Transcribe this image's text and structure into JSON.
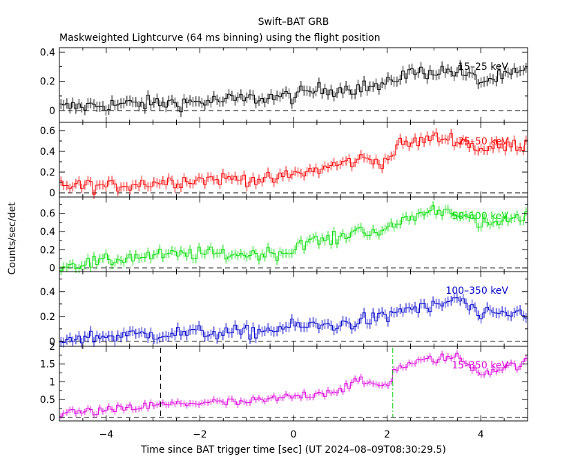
{
  "title": "Swift–BAT GRB",
  "subtitle": "Maskweighted Lightcurve (64 ms binning) using the flight position",
  "ylabel": "Counts/sec/det",
  "xlabel": "Time since BAT trigger time [sec] (UT 2024–08–09T08:30:29.5)",
  "colors": {
    "axis": "#000000",
    "baseline": "#000000",
    "t_start_marker": "#000000",
    "t_end_marker": "#00cc00"
  },
  "chart_data": {
    "type": "line",
    "xlim": [
      -5,
      5
    ],
    "x_ticks": [
      -4,
      -2,
      0,
      2,
      4
    ],
    "x_tick_labels": [
      "−4",
      "−2",
      "0",
      "2",
      "4"
    ],
    "grid": false,
    "markers": [
      {
        "name": "t_start",
        "x": -2.84,
        "panel": 4,
        "style": "dashed",
        "color": "#000000"
      },
      {
        "name": "t_end",
        "x": 2.12,
        "panel": 4,
        "style": "dashdot",
        "color": "#00cc00"
      }
    ],
    "panels": [
      {
        "label": "15–25 keV",
        "color": "#000000",
        "ylim": [
          -0.08,
          0.43
        ],
        "y_ticks": [
          0,
          0.2,
          0.4
        ],
        "y_tick_labels": [
          "0",
          "0.2",
          "0.4"
        ],
        "trend": [
          [
            -5,
            0.02
          ],
          [
            -4,
            0.04
          ],
          [
            -3,
            0.05
          ],
          [
            -2,
            0.06
          ],
          [
            -1,
            0.08
          ],
          [
            0,
            0.1
          ],
          [
            0.5,
            0.14
          ],
          [
            1,
            0.15
          ],
          [
            1.5,
            0.16
          ],
          [
            2,
            0.17
          ],
          [
            2.3,
            0.25
          ],
          [
            3,
            0.27
          ],
          [
            3.5,
            0.27
          ],
          [
            4,
            0.2
          ],
          [
            4.5,
            0.23
          ],
          [
            5,
            0.27
          ]
        ],
        "noise": 0.035
      },
      {
        "label": "25–50 keV",
        "color": "#ff0000",
        "ylim": [
          -0.04,
          0.68
        ],
        "y_ticks": [
          0,
          0.2,
          0.4,
          0.6
        ],
        "y_tick_labels": [
          "0",
          "0.2",
          "0.4",
          "0.6"
        ],
        "trend": [
          [
            -5,
            0.08
          ],
          [
            -4,
            0.06
          ],
          [
            -3,
            0.1
          ],
          [
            -2,
            0.13
          ],
          [
            -1,
            0.14
          ],
          [
            -0.5,
            0.12
          ],
          [
            0,
            0.18
          ],
          [
            0.5,
            0.22
          ],
          [
            1,
            0.28
          ],
          [
            1.5,
            0.33
          ],
          [
            2,
            0.3
          ],
          [
            2.2,
            0.45
          ],
          [
            3,
            0.53
          ],
          [
            3.5,
            0.52
          ],
          [
            4,
            0.42
          ],
          [
            4.5,
            0.45
          ],
          [
            5,
            0.47
          ]
        ],
        "noise": 0.045
      },
      {
        "label": "50–100 keV",
        "color": "#00dd00",
        "ylim": [
          -0.04,
          0.78
        ],
        "y_ticks": [
          0,
          0.2,
          0.4,
          0.6
        ],
        "y_tick_labels": [
          "0",
          "0.2",
          "0.4",
          "0.6"
        ],
        "trend": [
          [
            -5,
            0.03
          ],
          [
            -4,
            0.07
          ],
          [
            -3.5,
            0.12
          ],
          [
            -2,
            0.16
          ],
          [
            -1,
            0.15
          ],
          [
            0,
            0.18
          ],
          [
            0.1,
            0.28
          ],
          [
            1,
            0.32
          ],
          [
            1.3,
            0.42
          ],
          [
            2,
            0.4
          ],
          [
            2.3,
            0.52
          ],
          [
            3,
            0.64
          ],
          [
            3.5,
            0.62
          ],
          [
            4,
            0.46
          ],
          [
            4.5,
            0.52
          ],
          [
            5,
            0.54
          ]
        ],
        "noise": 0.05
      },
      {
        "label": "100–350 keV",
        "color": "#0000cc",
        "ylim": [
          -0.04,
          0.56
        ],
        "y_ticks": [
          0,
          0.2,
          0.4
        ],
        "y_tick_labels": [
          "0",
          "0.2",
          "0.4"
        ],
        "trend": [
          [
            -5,
            0.02
          ],
          [
            -4,
            0.04
          ],
          [
            -3,
            0.06
          ],
          [
            -2,
            0.07
          ],
          [
            -1,
            0.07
          ],
          [
            0,
            0.12
          ],
          [
            1,
            0.13
          ],
          [
            1.5,
            0.17
          ],
          [
            2,
            0.19
          ],
          [
            2.3,
            0.26
          ],
          [
            3,
            0.27
          ],
          [
            3.5,
            0.35
          ],
          [
            4,
            0.2
          ],
          [
            4.5,
            0.22
          ],
          [
            5,
            0.23
          ]
        ],
        "noise": 0.04
      },
      {
        "label": "15–350 keV",
        "color": "#dd00dd",
        "ylim": [
          -0.1,
          2.0
        ],
        "y_ticks": [
          0,
          0.5,
          1,
          1.5,
          2
        ],
        "y_tick_labels": [
          "0",
          "0.5",
          "1",
          "1.5",
          "2"
        ],
        "trend": [
          [
            -5,
            0.12
          ],
          [
            -4,
            0.18
          ],
          [
            -3,
            0.33
          ],
          [
            -2,
            0.42
          ],
          [
            -1,
            0.42
          ],
          [
            0,
            0.58
          ],
          [
            1,
            0.78
          ],
          [
            1.3,
            1.0
          ],
          [
            2,
            0.9
          ],
          [
            2.2,
            1.4
          ],
          [
            3,
            1.65
          ],
          [
            3.5,
            1.7
          ],
          [
            4,
            1.25
          ],
          [
            4.5,
            1.4
          ],
          [
            5,
            1.55
          ]
        ],
        "noise": 0.09
      }
    ]
  }
}
